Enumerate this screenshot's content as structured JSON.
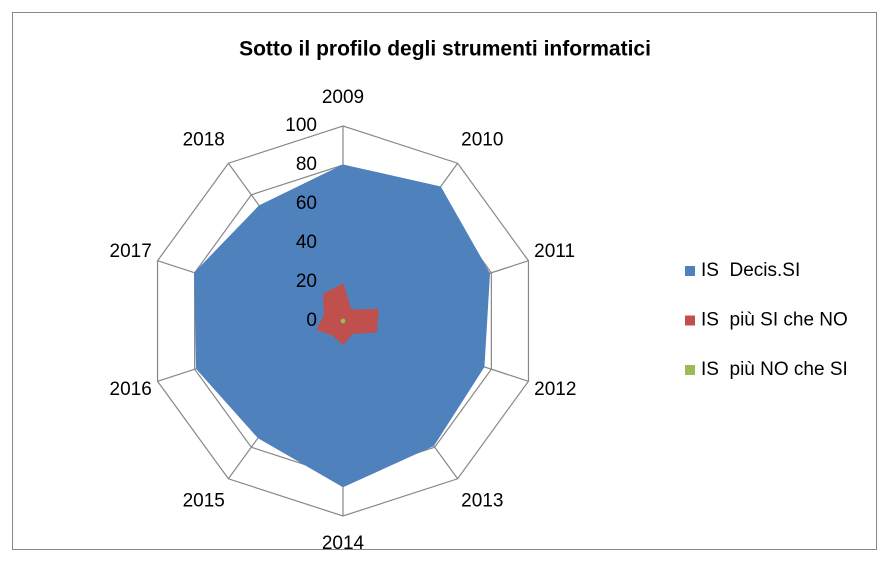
{
  "chart_data": {
    "type": "radar",
    "title": "Sotto il profilo degli strumenti informatici",
    "categories": [
      "2009",
      "2010",
      "2011",
      "2012",
      "2013",
      "2014",
      "2015",
      "2016",
      "2017",
      "2018"
    ],
    "series": [
      {
        "name": "IS  Decis.SI",
        "color": "#4f81bd",
        "values": [
          80,
          85,
          79,
          76,
          79,
          85,
          74,
          79,
          80,
          73
        ]
      },
      {
        "name": "IS  più SI che NO",
        "color": "#c0504d",
        "values": [
          19,
          7,
          19,
          18,
          8,
          12,
          9,
          14,
          10,
          17
        ]
      },
      {
        "name": "IS  più NO che SI",
        "color": "#9bbb59",
        "values": [
          1,
          1,
          1,
          1,
          1,
          1,
          1,
          1,
          1,
          1
        ]
      }
    ],
    "ylim": [
      0,
      100
    ],
    "yticks": [
      0,
      20,
      40,
      60,
      80,
      100
    ],
    "grid": true,
    "legend": "right"
  }
}
